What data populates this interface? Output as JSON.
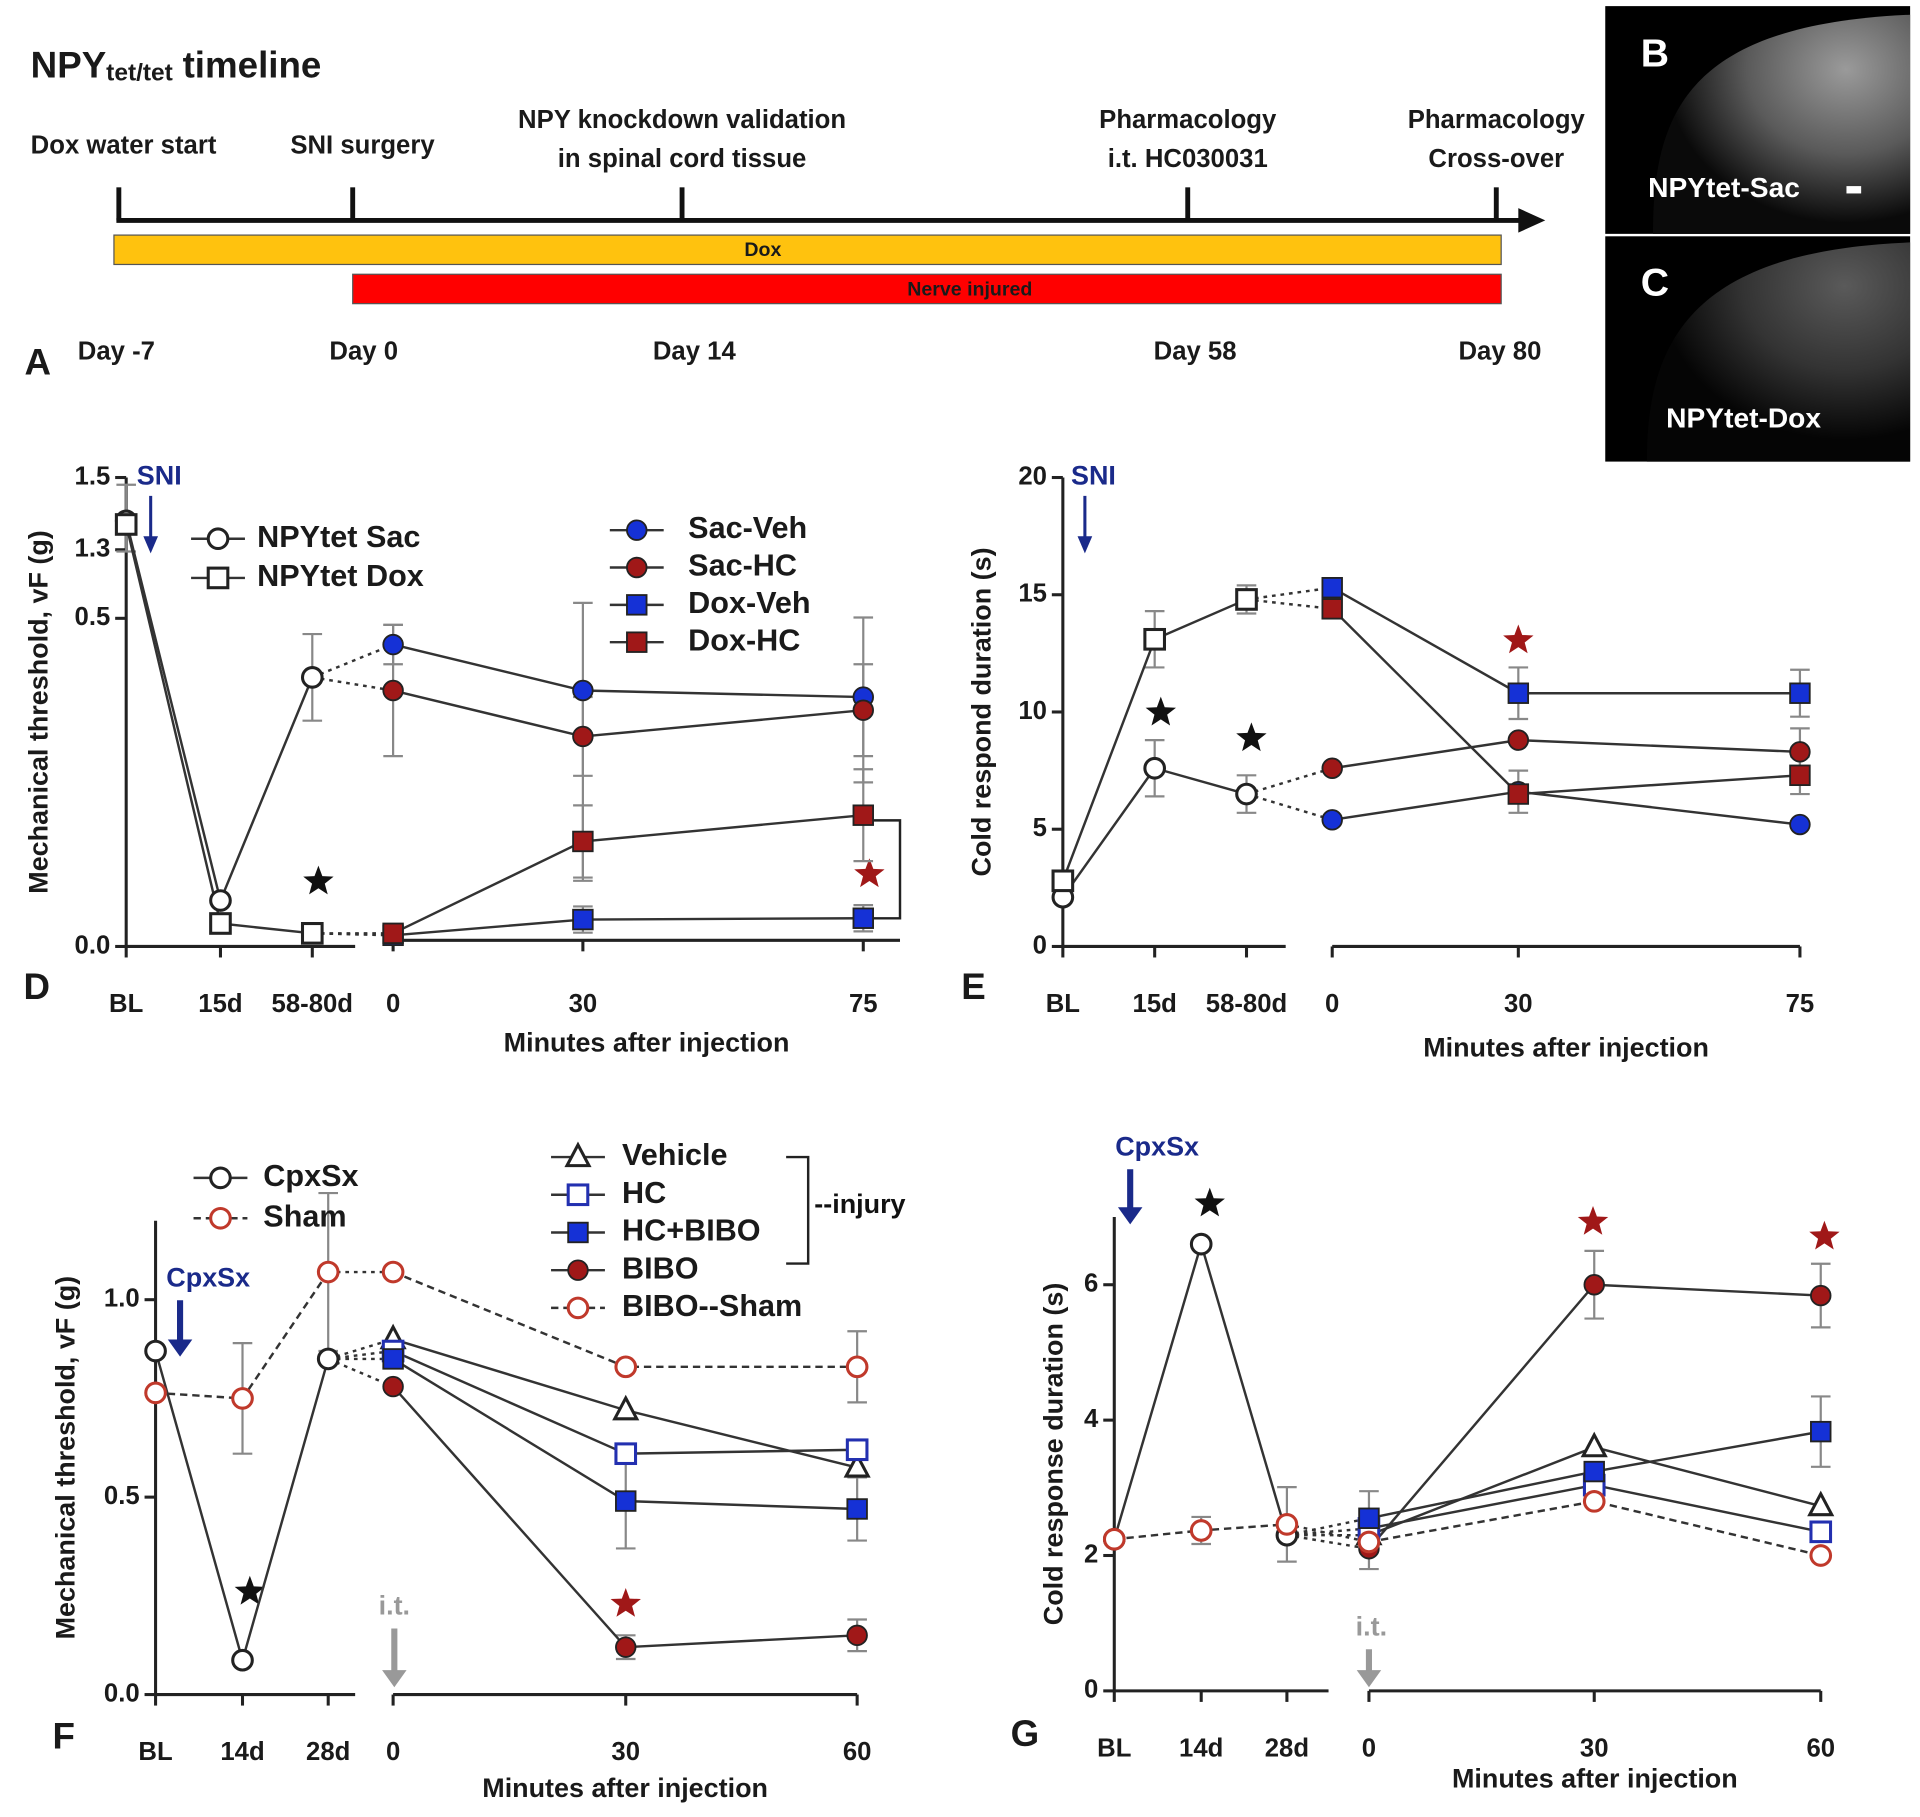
{
  "timeline": {
    "panel": "A",
    "title": [
      "NPY",
      "tet/tet",
      "timeline"
    ],
    "events": [
      {
        "label": [
          "Dox water start"
        ],
        "day": "Day -7"
      },
      {
        "label": [
          "SNI surgery"
        ],
        "day": "Day 0"
      },
      {
        "label": [
          "NPY knockdown validation",
          "in spinal cord tissue"
        ],
        "day": "Day 14"
      },
      {
        "label": [
          "Pharmacology",
          "i.t. HC030031"
        ],
        "day": "Day 58"
      },
      {
        "label": [
          "Pharmacology",
          "Cross-over"
        ],
        "day": "Day 80"
      }
    ],
    "bars": [
      "Dox",
      "Nerve injured"
    ]
  },
  "images": [
    {
      "panel": "B",
      "label": "NPYtet-Sac"
    },
    {
      "panel": "C",
      "label": "NPYtet-Dox"
    }
  ],
  "chart_data": [
    {
      "type": "line",
      "panel": "D",
      "ylabel": "Mechanical threshold, vF (g)",
      "xlabel": "Minutes after injection",
      "categories": [
        "BL",
        "15d",
        "58-80d",
        "0",
        "30",
        "75"
      ],
      "ylim": [
        0,
        1.5
      ],
      "ybreak": [
        0.5,
        1.3
      ],
      "yticks": [
        {
          "value": 0,
          "label": "0.0"
        },
        0.5,
        1.3,
        1.5
      ],
      "annotations": [
        "SNI"
      ],
      "series": [
        {
          "name": "NPYtet Sac",
          "color": "#222222",
          "marker": "circle",
          "filled": false,
          "values": [
            1.38,
            0.07,
            0.41,
            null,
            null,
            null
          ],
          "errors": [
            0.1,
            null,
            0.066,
            null,
            null,
            null
          ]
        },
        {
          "name": "NPYtet Dox",
          "color": "#222222",
          "marker": "square",
          "filled": false,
          "values": [
            1.37,
            0.035,
            0.02,
            null,
            null,
            null
          ],
          "errors": [
            null,
            null,
            null,
            null,
            null,
            null
          ]
        },
        {
          "name": "Sac-Veh",
          "color": "#1531d6",
          "marker": "circle",
          "filled": true,
          "values": [
            null,
            null,
            null,
            0.46,
            0.39,
            0.38
          ],
          "errors": [
            null,
            null,
            null,
            0.03,
            0.29,
            0.13
          ]
        },
        {
          "name": "Sac-HC",
          "color": "#a01818",
          "marker": "circle",
          "filled": true,
          "values": [
            null,
            null,
            null,
            0.39,
            0.32,
            0.36
          ],
          "errors": [
            null,
            null,
            null,
            0.1,
            0.06,
            0.07
          ]
        },
        {
          "name": "Dox-Veh",
          "color": "#1531d6",
          "marker": "square",
          "filled": true,
          "values": [
            null,
            null,
            null,
            0.017,
            0.041,
            0.043
          ],
          "errors": [
            null,
            null,
            null,
            null,
            0.02,
            0.02
          ]
        },
        {
          "name": "Dox-HC",
          "color": "#a01818",
          "marker": "square",
          "filled": true,
          "values": [
            null,
            null,
            null,
            0.02,
            0.16,
            0.2
          ],
          "errors": [
            null,
            null,
            null,
            null,
            0.055,
            0.07
          ]
        }
      ]
    },
    {
      "type": "line",
      "panel": "E",
      "ylabel": "Cold respond duration (s)",
      "xlabel": "Minutes after injection",
      "categories": [
        "BL",
        "15d",
        "58-80d",
        "0",
        "30",
        "75"
      ],
      "ylim": [
        0,
        20
      ],
      "yticks": [
        0,
        5,
        10,
        15,
        20
      ],
      "annotations": [
        "SNI"
      ],
      "series": [
        {
          "color": "#222222",
          "marker": "circle",
          "filled": false,
          "values": [
            2.1,
            7.6,
            6.5,
            null,
            null,
            null
          ],
          "errors": [
            null,
            1.2,
            0.8,
            null,
            null,
            null
          ]
        },
        {
          "color": "#222222",
          "marker": "square",
          "filled": false,
          "values": [
            2.8,
            13.1,
            14.8,
            null,
            null,
            null
          ],
          "errors": [
            null,
            1.2,
            0.6,
            null,
            null,
            null
          ]
        },
        {
          "color": "#1531d6",
          "marker": "circle",
          "filled": true,
          "values": [
            null,
            null,
            null,
            5.4,
            6.6,
            5.2
          ],
          "errors": [
            null,
            null,
            null,
            null,
            0.9,
            null
          ]
        },
        {
          "color": "#a01818",
          "marker": "circle",
          "filled": true,
          "values": [
            null,
            null,
            null,
            7.6,
            8.8,
            8.3
          ],
          "errors": [
            null,
            null,
            null,
            null,
            null,
            1.0
          ]
        },
        {
          "color": "#1531d6",
          "marker": "square",
          "filled": true,
          "values": [
            null,
            null,
            null,
            15.3,
            10.8,
            10.8
          ],
          "errors": [
            null,
            null,
            null,
            null,
            1.1,
            1.0
          ]
        },
        {
          "color": "#a01818",
          "marker": "square",
          "filled": true,
          "values": [
            null,
            null,
            null,
            14.4,
            6.5,
            7.3
          ],
          "errors": [
            null,
            null,
            null,
            null,
            null,
            0.8
          ]
        }
      ]
    },
    {
      "type": "line",
      "panel": "F",
      "ylabel": "Mechanical threshold, vF (g)",
      "xlabel": "Minutes after injection",
      "categories": [
        "BL",
        "14d",
        "28d",
        "0",
        "30",
        "60"
      ],
      "ylim": [
        0,
        1.2
      ],
      "yticks": [
        {
          "value": 0,
          "label": "0.0"
        },
        0.5,
        {
          "value": 1,
          "label": "1.0"
        }
      ],
      "annotations": [
        "CpxSx",
        "i.t.",
        "--injury"
      ],
      "series": [
        {
          "name": "CpxSx",
          "color": "#222222",
          "marker": "circle",
          "filled": false,
          "values": [
            0.87,
            0.087,
            0.85,
            null,
            null,
            null
          ],
          "errors": [
            null,
            null,
            null,
            null,
            null,
            null
          ]
        },
        {
          "name": "Sham",
          "color": "#c0392b",
          "marker": "circle",
          "filled": false,
          "dashed": true,
          "values": [
            0.764,
            0.75,
            1.07,
            null,
            null,
            null
          ],
          "errors": [
            null,
            0.14,
            0.2,
            null,
            null,
            null
          ]
        },
        {
          "name": "Vehicle",
          "color": "#222222",
          "marker": "triangle",
          "filled": false,
          "values": [
            null,
            null,
            null,
            0.9,
            0.72,
            0.575
          ],
          "errors": [
            null,
            null,
            null,
            null,
            null,
            null
          ]
        },
        {
          "name": "HC",
          "color": "#2330b0",
          "marker": "square",
          "filled": false,
          "values": [
            null,
            null,
            null,
            0.87,
            0.61,
            0.62
          ],
          "errors": [
            null,
            null,
            null,
            null,
            null,
            null
          ]
        },
        {
          "name": "HC+BIBO",
          "color": "#1531d6",
          "marker": "square",
          "filled": true,
          "values": [
            null,
            null,
            null,
            0.85,
            0.49,
            0.47
          ],
          "errors": [
            null,
            null,
            null,
            null,
            0.12,
            0.08
          ]
        },
        {
          "name": "BIBO",
          "color": "#a01818",
          "marker": "circle",
          "filled": true,
          "values": [
            null,
            null,
            null,
            0.78,
            0.12,
            0.15
          ],
          "errors": [
            null,
            null,
            null,
            null,
            0.03,
            0.04
          ]
        },
        {
          "name": "BIBO--Sham",
          "color": "#c0392b",
          "marker": "circle",
          "filled": false,
          "dashed": true,
          "values": [
            null,
            null,
            null,
            1.07,
            0.83,
            0.83
          ],
          "errors": [
            null,
            null,
            null,
            null,
            null,
            0.09
          ]
        }
      ]
    },
    {
      "type": "line",
      "panel": "G",
      "ylabel": "Cold response duration (s)",
      "xlabel": "Minutes after injection",
      "categories": [
        "BL",
        "14d",
        "28d",
        "0",
        "30",
        "60"
      ],
      "ylim": [
        0,
        7
      ],
      "yticks": [
        0,
        2,
        4,
        6
      ],
      "annotations": [
        "CpxSx",
        "i.t."
      ],
      "series": [
        {
          "color": "#222222",
          "marker": "circle",
          "filled": false,
          "values": [
            2.24,
            6.6,
            2.3,
            null,
            null,
            null
          ],
          "errors": [
            null,
            null,
            null,
            null,
            null,
            null
          ]
        },
        {
          "color": "#c0392b",
          "marker": "circle",
          "filled": false,
          "dashed": true,
          "values": [
            2.24,
            2.37,
            2.46,
            null,
            null,
            null
          ],
          "errors": [
            null,
            0.2,
            0.55,
            null,
            null,
            null
          ]
        },
        {
          "color": "#222222",
          "marker": "triangle",
          "filled": false,
          "values": [
            null,
            null,
            null,
            2.3,
            3.6,
            2.73
          ],
          "errors": [
            null,
            null,
            null,
            null,
            null,
            null
          ]
        },
        {
          "color": "#2330b0",
          "marker": "square",
          "filled": false,
          "values": [
            null,
            null,
            null,
            2.4,
            3.04,
            2.35
          ],
          "errors": [
            null,
            null,
            null,
            null,
            null,
            null
          ]
        },
        {
          "color": "#1531d6",
          "marker": "square",
          "filled": true,
          "values": [
            null,
            null,
            null,
            2.55,
            3.24,
            3.83
          ],
          "errors": [
            null,
            null,
            null,
            0.4,
            null,
            0.52
          ]
        },
        {
          "color": "#a01818",
          "marker": "circle",
          "filled": true,
          "values": [
            null,
            null,
            null,
            2.1,
            6.0,
            5.84
          ],
          "errors": [
            null,
            null,
            null,
            0.3,
            0.5,
            0.47
          ]
        },
        {
          "color": "#c0392b",
          "marker": "circle",
          "filled": false,
          "dashed": true,
          "values": [
            null,
            null,
            null,
            2.2,
            2.8,
            2.0
          ],
          "errors": [
            null,
            null,
            null,
            null,
            null,
            null
          ]
        }
      ]
    }
  ]
}
